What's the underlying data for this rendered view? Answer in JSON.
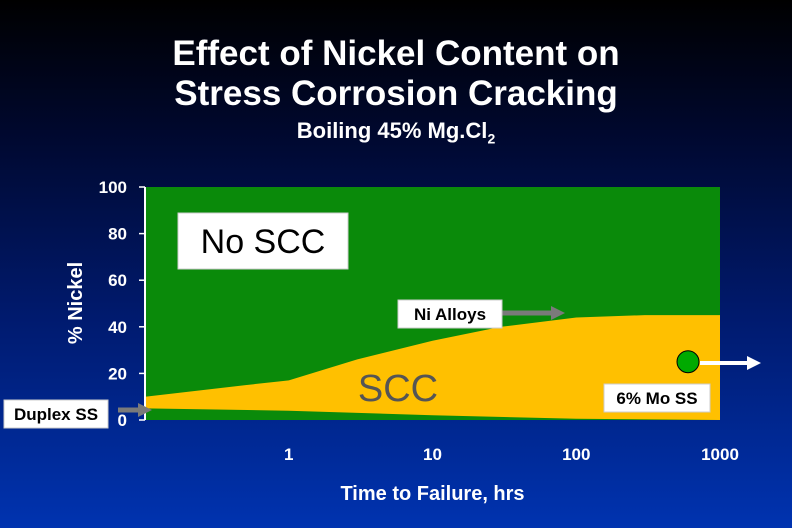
{
  "title_line1": "Effect of Nickel Content on",
  "title_line2": "Stress Corrosion Cracking",
  "subtitle_main": "Boiling 45% Mg.Cl",
  "subtitle_sub": "2",
  "chart_data": {
    "type": "area",
    "xlabel": "Time to Failure, hrs",
    "ylabel": "% Nickel",
    "x_scale": "log",
    "xlim": [
      0.1,
      1000
    ],
    "ylim": [
      0,
      100
    ],
    "x_ticks": [
      1,
      10,
      100,
      1000
    ],
    "x_tick_labels": [
      "1",
      "10",
      "100",
      "1000"
    ],
    "y_ticks": [
      0,
      20,
      40,
      60,
      80,
      100
    ],
    "y_tick_labels": [
      "0",
      "20",
      "40",
      "60",
      "80",
      "100"
    ],
    "grid": false,
    "regions": [
      {
        "name": "No SCC",
        "color": "#0a8a0a"
      },
      {
        "name": "SCC",
        "color": "#ffc000"
      }
    ],
    "scc_upper_boundary": {
      "x": [
        0.1,
        0.5,
        1,
        3,
        10,
        30,
        100,
        300,
        1000
      ],
      "y": [
        10,
        15,
        17,
        26,
        34,
        40,
        44,
        45,
        45
      ]
    },
    "scc_lower_boundary": {
      "x": [
        0.1,
        1,
        10,
        100,
        1000
      ],
      "y": [
        5,
        4,
        2,
        0.5,
        0
      ]
    },
    "annotations": {
      "no_scc": "No SCC",
      "scc": "SCC",
      "ni_alloys": "Ni Alloys",
      "duplex_ss": "Duplex SS",
      "mo_ss": "6% Mo SS"
    },
    "marker_6mo": {
      "x": 800,
      "y": 25,
      "color": "#00aa00"
    }
  },
  "colors": {
    "plot_bg": "#0a8a0a",
    "scc_fill": "#ffc000",
    "arrow": "#7a7a7a",
    "label_box": "#ffffff"
  }
}
